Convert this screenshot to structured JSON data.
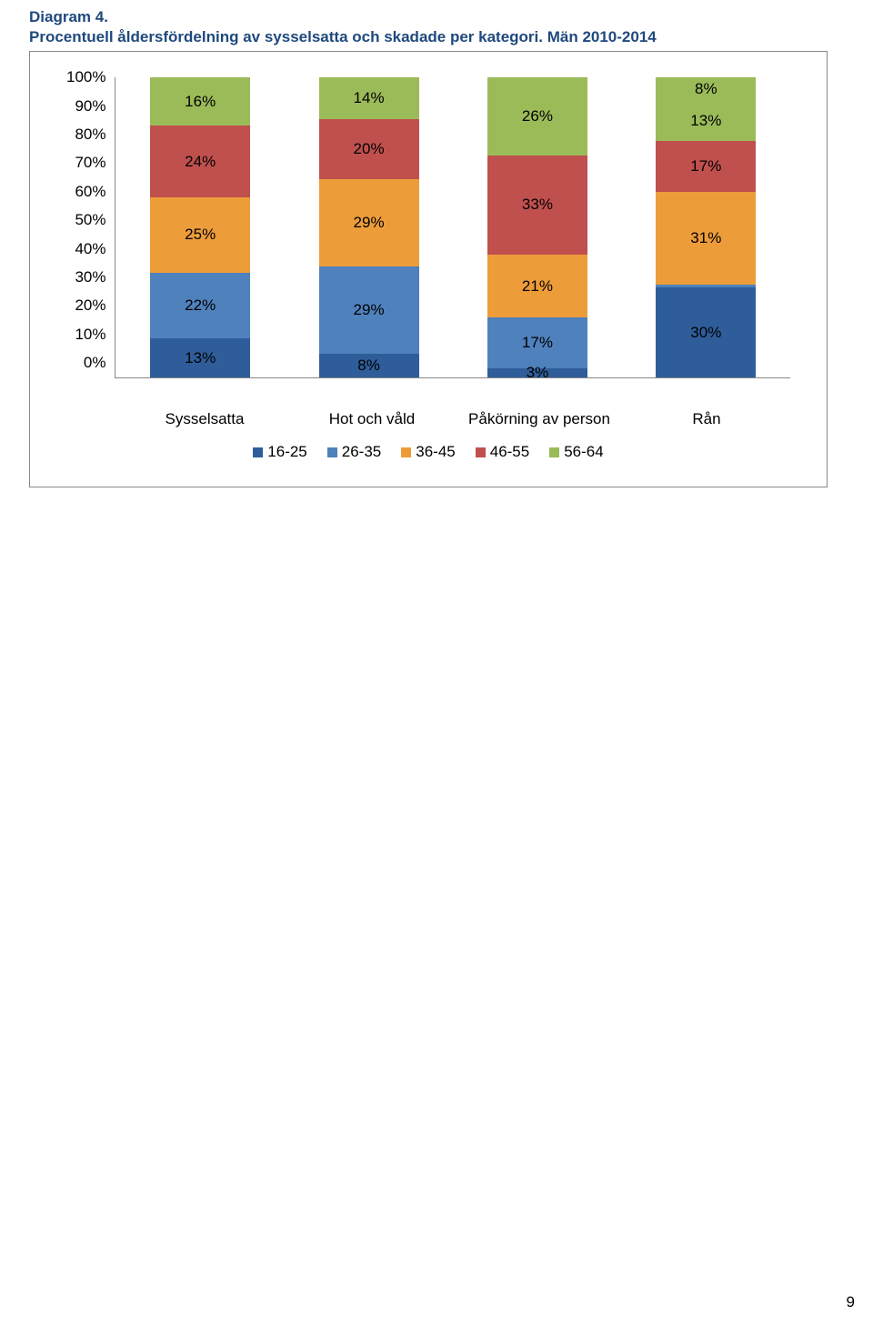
{
  "title": {
    "line1": "Diagram 4.",
    "line2": "Procentuell åldersfördelning av sysselsatta och skadade per kategori. Män 2010-2014",
    "color": "#1f497d",
    "fontsize": 17,
    "fontweight": "bold"
  },
  "chart": {
    "type": "stacked-bar-100",
    "background_color": "#ffffff",
    "border_color": "#888888",
    "y_axis": {
      "ticks": [
        "100%",
        "90%",
        "80%",
        "70%",
        "60%",
        "50%",
        "40%",
        "30%",
        "20%",
        "10%",
        "0%"
      ],
      "fontsize": 17
    },
    "series_order": [
      "16-25",
      "26-35",
      "36-45",
      "46-55",
      "56-64"
    ],
    "series_colors": {
      "16-25": "#2e5d9a",
      "26-35": "#4f81bd",
      "36-45": "#ed9c3a",
      "46-55": "#c0504d",
      "56-64": "#9bbb59"
    },
    "categories": [
      {
        "label": "Sysselsatta",
        "segments": [
          {
            "series": "16-25",
            "value": 13,
            "label": "13%"
          },
          {
            "series": "26-35",
            "value": 22,
            "label": "22%"
          },
          {
            "series": "36-45",
            "value": 25,
            "label": "25%"
          },
          {
            "series": "46-55",
            "value": 24,
            "label": "24%"
          },
          {
            "series": "56-64",
            "value": 16,
            "label": "16%"
          }
        ]
      },
      {
        "label": "Hot och våld",
        "segments": [
          {
            "series": "16-25",
            "value": 8,
            "label": "8%"
          },
          {
            "series": "26-35",
            "value": 29,
            "label": "29%"
          },
          {
            "series": "36-45",
            "value": 29,
            "label": "29%"
          },
          {
            "series": "46-55",
            "value": 20,
            "label": "20%"
          },
          {
            "series": "56-64",
            "value": 14,
            "label": "14%"
          }
        ]
      },
      {
        "label": "Påkörning av person",
        "segments": [
          {
            "series": "16-25",
            "value": 3,
            "label": "3%"
          },
          {
            "series": "26-35",
            "value": 17,
            "label": "17%"
          },
          {
            "series": "36-45",
            "value": 21,
            "label": "21%"
          },
          {
            "series": "46-55",
            "value": 33,
            "label": "33%"
          },
          {
            "series": "56-64",
            "value": 26,
            "label": "26%"
          }
        ]
      },
      {
        "label": "Rån",
        "segments": [
          {
            "series": "16-25",
            "value": 30,
            "label": "30%"
          },
          {
            "series": "26-35",
            "value": 1,
            "label": ""
          },
          {
            "series": "36-45",
            "value": 31,
            "label": "31%"
          },
          {
            "series": "46-55",
            "value": 17,
            "label": "17%"
          },
          {
            "series": "56-64",
            "value": 13,
            "label": "13%"
          }
        ],
        "extra_top": {
          "value": 8,
          "label": "8%",
          "color": "#9bbb59"
        }
      }
    ],
    "legend": [
      {
        "label": "16-25",
        "color": "#2e5d9a"
      },
      {
        "label": "26-35",
        "color": "#4f81bd"
      },
      {
        "label": "36-45",
        "color": "#ed9c3a"
      },
      {
        "label": "46-55",
        "color": "#c0504d"
      },
      {
        "label": "56-64",
        "color": "#9bbb59"
      }
    ],
    "label_fontsize": 17
  },
  "page_number": "9"
}
